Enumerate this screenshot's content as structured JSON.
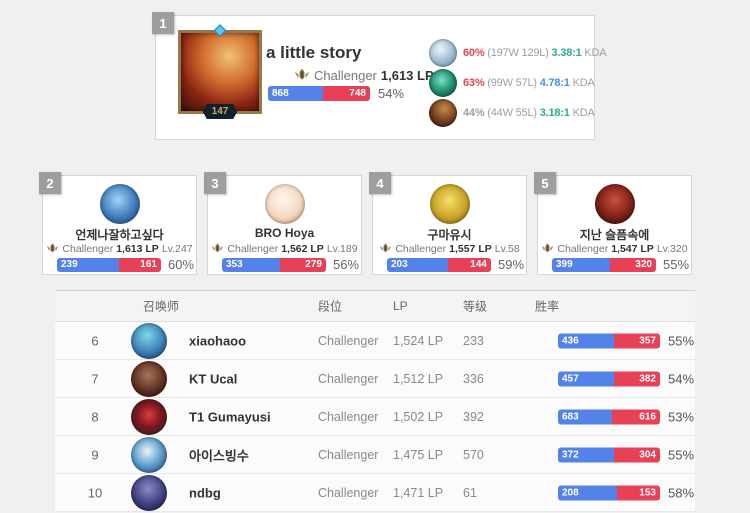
{
  "colors": {
    "win_blue": "#5383e8",
    "loss_red": "#e84057",
    "pct_red": "#e8434f",
    "pct_gray": "#98a0a7",
    "kda_green": "#2dab8f",
    "kda_blue": "#4a90e2"
  },
  "icons": {
    "rank_badge": "rank-number-badge",
    "tier_crest": "challenger-crest-icon",
    "level_badge": "summoner-level-hex-badge"
  },
  "top_player": {
    "rank": "1",
    "name": "a little story",
    "tier": "Challenger",
    "lp": "1,613 LP",
    "level": "147",
    "wins": 868,
    "losses": 748,
    "winrate": "54%",
    "avatar": "fiery-champion-square-avatar",
    "champions": [
      {
        "icon": "pale-blue-champion-icon",
        "winrate": "60%",
        "winrate_color": "#e8434f",
        "record": "(197W 129L)",
        "kda": "3.38:1",
        "kda_color": "#2dab8f",
        "kda_label": "KDA"
      },
      {
        "icon": "green-champion-icon",
        "winrate": "63%",
        "winrate_color": "#e8434f",
        "record": "(99W 57L)",
        "kda": "4.78:1",
        "kda_color": "#4a90e2",
        "kda_label": "KDA"
      },
      {
        "icon": "dark-amber-champion-icon",
        "winrate": "44%",
        "winrate_color": "#98a0a7",
        "record": "(44W 55L)",
        "kda": "3.18:1",
        "kda_color": "#2dab8f",
        "kda_label": "KDA"
      }
    ]
  },
  "cards": [
    {
      "rank": "2",
      "name": "언제나잘하고싶다",
      "tier": "Challenger",
      "lp": "1,613 LP",
      "level": "Lv.247",
      "wins": 239,
      "losses": 161,
      "winrate": "60%",
      "avatar": "blue-xray-avatar"
    },
    {
      "rank": "3",
      "name": "BRO Hoya",
      "tier": "Challenger",
      "lp": "1,562 LP",
      "level": "Lv.189",
      "wins": 353,
      "losses": 279,
      "winrate": "56%",
      "avatar": "poro-face-avatar"
    },
    {
      "rank": "4",
      "name": "구마유시",
      "tier": "Challenger",
      "lp": "1,557 LP",
      "level": "Lv.58",
      "wins": 203,
      "losses": 144,
      "winrate": "59%",
      "avatar": "gold-sprout-avatar"
    },
    {
      "rank": "5",
      "name": "지난 슬픔속에",
      "tier": "Challenger",
      "lp": "1,547 LP",
      "level": "Lv.320",
      "wins": 399,
      "losses": 320,
      "winrate": "55%",
      "avatar": "dark-red-robot-avatar"
    }
  ],
  "table": {
    "headers": {
      "summoner": "召唤师",
      "tier": "段位",
      "lp": "LP",
      "level": "等级",
      "winrate": "胜率"
    },
    "rows": [
      {
        "rank": "6",
        "name": "xiaohaoo",
        "tier": "Challenger",
        "lp": "1,524 LP",
        "level": "233",
        "wins": 436,
        "losses": 357,
        "winrate": "55%",
        "avatar": "blue-haired-champion-avatar"
      },
      {
        "rank": "7",
        "name": "KT Ucal",
        "tier": "Challenger",
        "lp": "1,512 LP",
        "level": "336",
        "wins": 457,
        "losses": 382,
        "winrate": "54%",
        "avatar": "dark-brown-champion-avatar"
      },
      {
        "rank": "8",
        "name": "T1 Gumayusi",
        "tier": "Challenger",
        "lp": "1,502 LP",
        "level": "392",
        "wins": 683,
        "losses": 616,
        "winrate": "53%",
        "avatar": "red-rose-avatar"
      },
      {
        "rank": "9",
        "name": "아이스빙수",
        "tier": "Challenger",
        "lp": "1,475 LP",
        "level": "570",
        "wins": 372,
        "losses": 304,
        "winrate": "55%",
        "avatar": "penguin-avatar"
      },
      {
        "rank": "10",
        "name": "ndbg",
        "tier": "Challenger",
        "lp": "1,471 LP",
        "level": "61",
        "wins": 208,
        "losses": 153,
        "winrate": "58%",
        "avatar": "dark-purple-champion-avatar"
      }
    ]
  }
}
